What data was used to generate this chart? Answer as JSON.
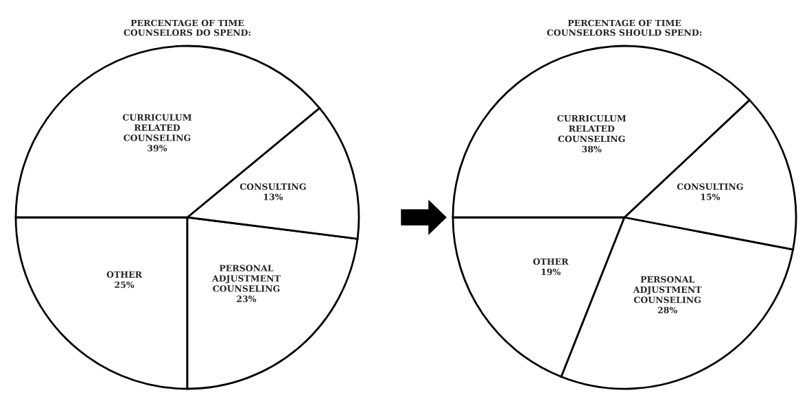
{
  "chart_data": [
    {
      "type": "pie",
      "title": "PERCENTAGE OF TIME\nCOUNSELORS DO SPEND:",
      "categories": [
        "OTHER",
        "PERSONAL ADJUSTMENT COUNSELING",
        "CONSULTING",
        "CURRICULUM RELATED COUNSELING"
      ],
      "values": [
        25,
        23,
        13,
        39
      ],
      "value_labels": [
        "25%",
        "23%",
        "13%",
        "39%"
      ],
      "colors": [
        "#ffffff",
        "#ffffff",
        "#ffffff",
        "#ffffff"
      ]
    },
    {
      "type": "pie",
      "title": "PERCENTAGE OF TIME\nCOUNSELORS SHOULD SPEND:",
      "categories": [
        "OTHER",
        "PERSONAL ADJUSTMENT COUNSELING",
        "CONSULTING",
        "CURRICULUM RELATED COUNSELING"
      ],
      "values": [
        19,
        28,
        15,
        38
      ],
      "value_labels": [
        "19%",
        "28%",
        "15%",
        "38%"
      ],
      "colors": [
        "#ffffff",
        "#ffffff",
        "#ffffff",
        "#ffffff"
      ]
    }
  ]
}
